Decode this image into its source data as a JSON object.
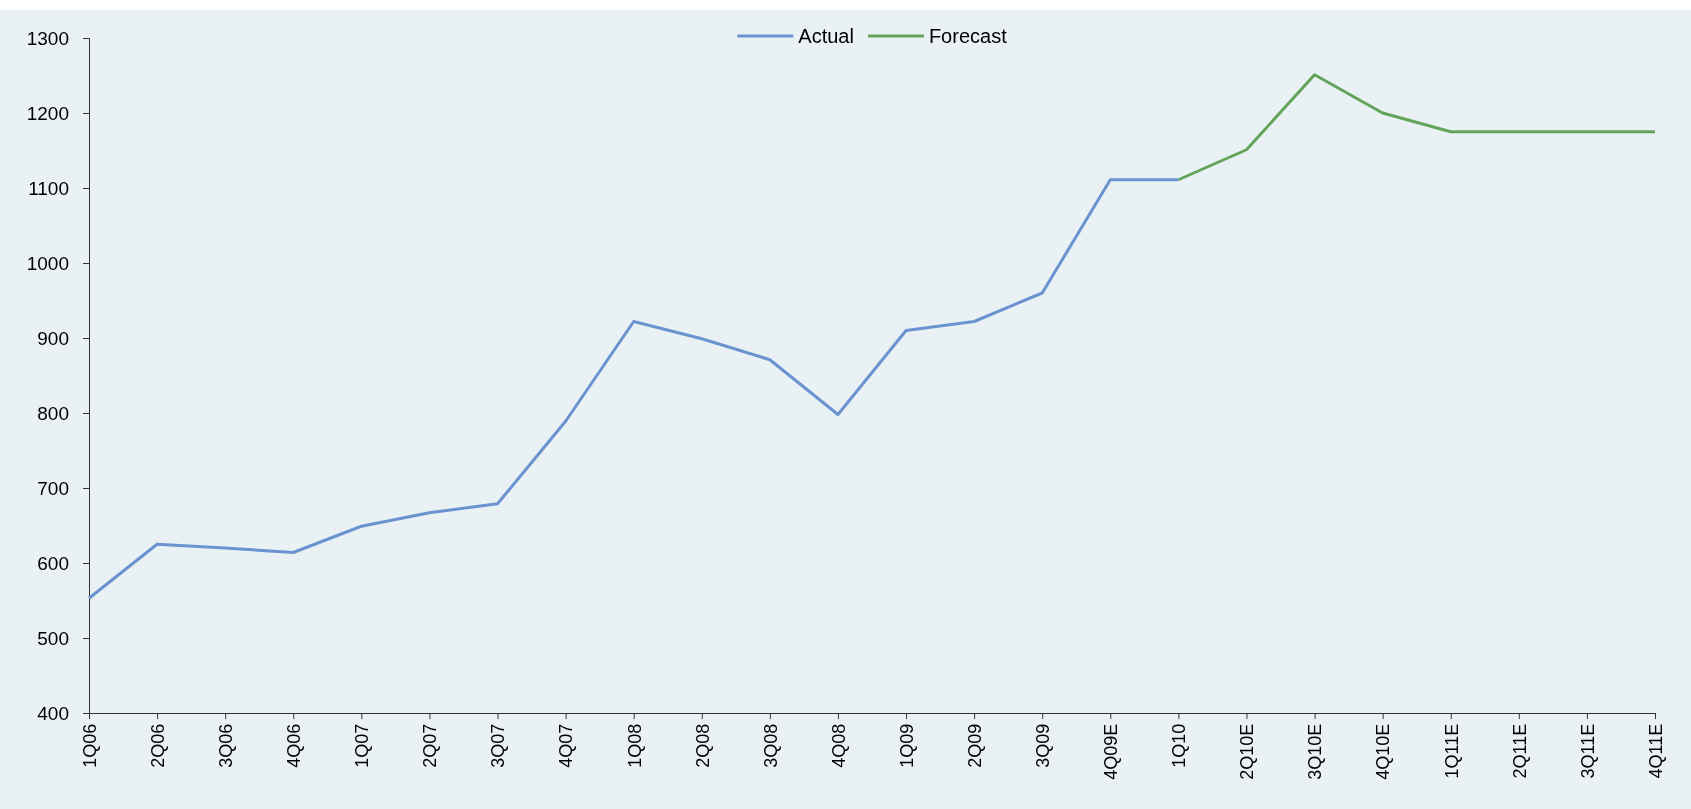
{
  "chart_data": {
    "type": "line",
    "categories": [
      "1Q06",
      "2Q06",
      "3Q06",
      "4Q06",
      "1Q07",
      "2Q07",
      "3Q07",
      "4Q07",
      "1Q08",
      "2Q08",
      "3Q08",
      "4Q08",
      "1Q09",
      "2Q09",
      "3Q09",
      "4Q09E",
      "1Q10",
      "2Q10E",
      "3Q10E",
      "4Q10E",
      "1Q11E",
      "2Q11E",
      "3Q11E",
      "4Q11E"
    ],
    "series": [
      {
        "name": "Actual",
        "color": "#6a93cf",
        "values": [
          553,
          625,
          620,
          614,
          649,
          667,
          679,
          789,
          922,
          899,
          871,
          798,
          910,
          922,
          960,
          1111,
          1111,
          null,
          null,
          null,
          null,
          null,
          null,
          null
        ]
      },
      {
        "name": "Forecast",
        "color": "#62a55a",
        "values": [
          null,
          null,
          null,
          null,
          null,
          null,
          null,
          null,
          null,
          null,
          null,
          null,
          null,
          null,
          null,
          null,
          1111,
          1151,
          1251,
          1200,
          1175,
          1175,
          1175,
          1175
        ]
      }
    ],
    "ylim": [
      400,
      1300
    ],
    "yticks": [
      400,
      500,
      600,
      700,
      800,
      900,
      1000,
      1100,
      1200,
      1300
    ],
    "grid": false,
    "legend": "top",
    "marker": "none",
    "line_style": "solid"
  }
}
